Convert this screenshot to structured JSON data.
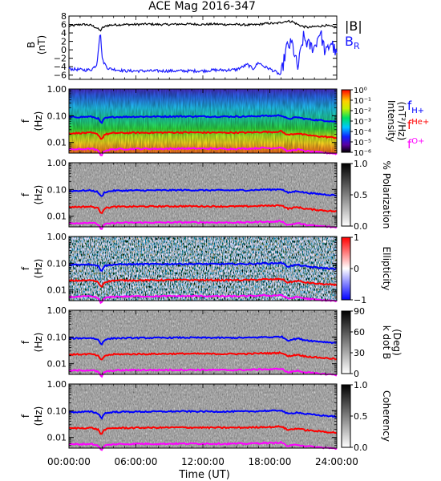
{
  "title": "ACE Mag 2016-347",
  "xlabel": "Time (UT)",
  "x_ticks": [
    "00:00:00",
    "06:00:00",
    "12:00:00",
    "18:00:00",
    "24:00:00"
  ],
  "freq_ticks": [
    "1.00",
    "0.10",
    "0.01"
  ],
  "freq_axis_label": "f",
  "freq_axis_unit": "(Hz)",
  "colors": {
    "total_b": "#000000",
    "br": "#1a1aff",
    "f_h": "#0000ff",
    "f_he": "#ff0000",
    "f_o": "#ff00ff"
  },
  "chart_data": [
    {
      "type": "line",
      "panel": "magnetic-field",
      "ylabel": "B",
      "yunit": "(nT)",
      "ylim": [
        -7,
        8
      ],
      "y_ticks": [
        "8",
        "6",
        "4",
        "2",
        "0",
        "−2",
        "−4",
        "−6"
      ],
      "x_hours": [
        0,
        0.5,
        1,
        1.5,
        2,
        2.5,
        2.8,
        3,
        3.5,
        4,
        5,
        6,
        7,
        8,
        9,
        10,
        11,
        12,
        13,
        14,
        15,
        16,
        16.5,
        17,
        17.5,
        18,
        18.5,
        19,
        19.5,
        20,
        20.5,
        21,
        21.5,
        22,
        22.5,
        23,
        23.5,
        24
      ],
      "series": [
        {
          "name": "|B|",
          "values": [
            5.6,
            5.8,
            6.0,
            6.0,
            5.8,
            5.2,
            4.5,
            5.2,
            5.8,
            5.9,
            6.0,
            6.0,
            6.1,
            6.0,
            6.0,
            6.1,
            6.1,
            6.0,
            6.1,
            6.0,
            6.0,
            5.9,
            5.9,
            6.0,
            6.2,
            6.3,
            6.2,
            6.5,
            6.8,
            6.7,
            6.0,
            5.5,
            5.3,
            5.5,
            5.6,
            5.8,
            5.5,
            5.3
          ]
        },
        {
          "name": "B",
          "values": [
            -4.5,
            -4.6,
            -4.7,
            -4.8,
            -4.7,
            -3.5,
            4.5,
            -2.5,
            -4.4,
            -4.6,
            -5.0,
            -5.0,
            -5.0,
            -5.0,
            -5.0,
            -5.0,
            -5.0,
            -5.0,
            -4.8,
            -4.8,
            -4.7,
            -3.5,
            -4.5,
            -3.0,
            -4.0,
            -4.5,
            -5.2,
            -6.0,
            0.5,
            1.5,
            -4.5,
            3.0,
            1.0,
            0.5,
            4.5,
            -1.0,
            2.0,
            -1.5
          ]
        }
      ]
    },
    {
      "type": "heatmap",
      "panel": "intensity",
      "colorbar_label": "Intensity",
      "colorbar_unit": "(nT²/Hz)",
      "colorbar_ticks": [
        "10⁰",
        "10⁻¹",
        "10⁻²",
        "10⁻³",
        "10⁻⁴",
        "10⁻⁵",
        "10⁻⁶"
      ],
      "colorbar_range_log10": [
        -6,
        0
      ]
    },
    {
      "type": "heatmap",
      "panel": "polarization",
      "colorbar_label": "% Polarization",
      "colorbar_ticks": [
        "1.0",
        "0.5",
        "0.0"
      ],
      "colorbar_range": [
        0,
        1
      ]
    },
    {
      "type": "heatmap",
      "panel": "ellipticity",
      "colorbar_label": "Ellipticity",
      "colorbar_ticks": [
        "1",
        "0",
        "−1"
      ],
      "colorbar_range": [
        -1,
        1
      ]
    },
    {
      "type": "heatmap",
      "panel": "k-dot-b",
      "colorbar_label": "k dot B",
      "colorbar_unit": "(Deg)",
      "colorbar_ticks": [
        "90",
        "60",
        "30",
        "0"
      ],
      "colorbar_range": [
        0,
        90
      ]
    },
    {
      "type": "heatmap",
      "panel": "coherency",
      "colorbar_label": "Coherency",
      "colorbar_ticks": [
        "1.0",
        "0.5",
        "0.0"
      ],
      "colorbar_range": [
        0,
        1
      ]
    }
  ],
  "gyrofrequency_lines": {
    "x_hours": [
      0,
      1,
      2,
      2.6,
      2.9,
      3.2,
      4,
      6,
      8,
      10,
      12,
      14,
      16,
      17,
      17.5,
      18,
      18.5,
      19,
      19.6,
      20.5,
      21,
      22,
      23,
      24
    ],
    "series": [
      {
        "name": "H+",
        "values_hz": [
          0.088,
          0.09,
          0.092,
          0.08,
          0.05,
          0.08,
          0.09,
          0.092,
          0.093,
          0.095,
          0.094,
          0.093,
          0.094,
          0.097,
          0.1,
          0.098,
          0.1,
          0.105,
          0.075,
          0.088,
          0.078,
          0.07,
          0.065,
          0.06
        ]
      },
      {
        "name": "He+",
        "values_hz": [
          0.022,
          0.0225,
          0.023,
          0.02,
          0.0125,
          0.02,
          0.0225,
          0.023,
          0.0233,
          0.0238,
          0.0235,
          0.0233,
          0.0235,
          0.0243,
          0.025,
          0.0245,
          0.025,
          0.0263,
          0.019,
          0.022,
          0.0195,
          0.0175,
          0.0163,
          0.015
        ]
      },
      {
        "name": "O+",
        "values_hz": [
          0.0055,
          0.0056,
          0.0058,
          0.005,
          0.0031,
          0.005,
          0.0056,
          0.0058,
          0.0058,
          0.0059,
          0.0059,
          0.0058,
          0.0059,
          0.0061,
          0.0063,
          0.0061,
          0.0063,
          0.0066,
          0.0047,
          0.0055,
          0.0049,
          0.0044,
          0.0041,
          0.0038
        ]
      }
    ]
  },
  "legends": {
    "field": [
      {
        "main": "|B|",
        "sub": ""
      },
      {
        "main": "B",
        "sub": "R"
      }
    ],
    "gyro": [
      {
        "main": "f",
        "sub": "H+"
      },
      {
        "main": "f",
        "sub": "He+"
      },
      {
        "main": "f",
        "sub": "O+"
      }
    ]
  }
}
